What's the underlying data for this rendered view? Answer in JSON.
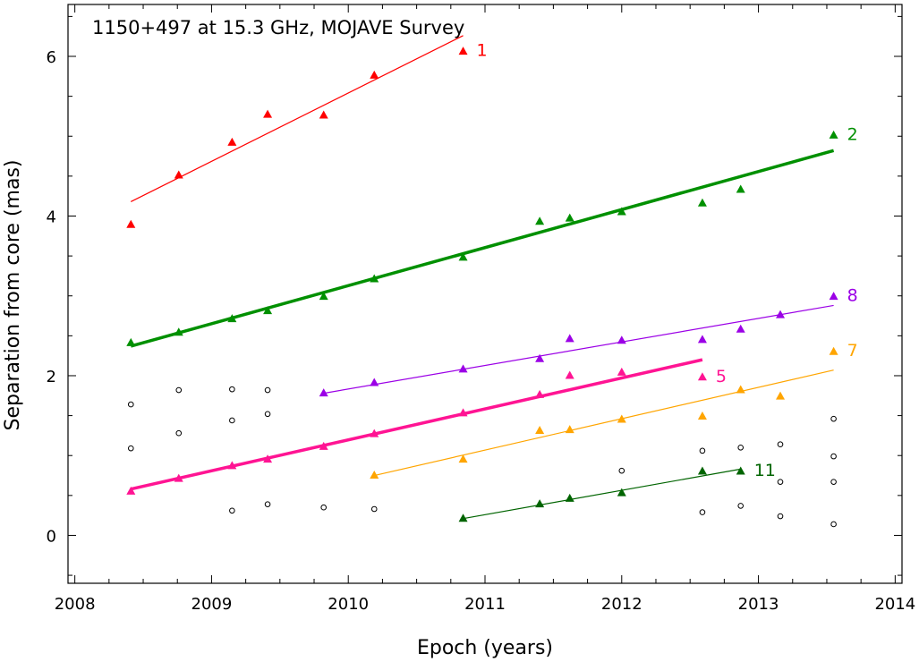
{
  "chart_data": {
    "type": "scatter",
    "title": "1150+497 at 15.3 GHz, MOJAVE Survey",
    "xlabel": "Epoch (years)",
    "ylabel": "Separation from core (mas)",
    "xlim": [
      2007.95,
      2014.05
    ],
    "ylim": [
      -0.6,
      6.65
    ],
    "xticks": [
      2008,
      2009,
      2010,
      2011,
      2012,
      2013,
      2014
    ],
    "yticks": [
      0,
      2,
      4,
      6
    ],
    "xtick_labels": [
      "2008",
      "2009",
      "2010",
      "2011",
      "2012",
      "2013",
      "2014"
    ],
    "ytick_labels": [
      "0",
      "2",
      "4",
      "6"
    ],
    "series": [
      {
        "name": "1",
        "color": "#ff0000",
        "bold": false,
        "points": [
          [
            2008.41,
            3.89
          ],
          [
            2008.76,
            4.51
          ],
          [
            2009.15,
            4.92
          ],
          [
            2009.41,
            5.27
          ],
          [
            2009.82,
            5.26
          ],
          [
            2010.19,
            5.76
          ],
          [
            2010.84,
            6.06
          ]
        ],
        "fit": [
          [
            2008.41,
            4.18
          ],
          [
            2010.84,
            6.26
          ]
        ]
      },
      {
        "name": "2",
        "color": "#009000",
        "bold": true,
        "points": [
          [
            2008.41,
            2.41
          ],
          [
            2008.76,
            2.54
          ],
          [
            2009.15,
            2.71
          ],
          [
            2009.41,
            2.81
          ],
          [
            2009.82,
            2.99
          ],
          [
            2010.19,
            3.21
          ],
          [
            2010.84,
            3.48
          ],
          [
            2011.4,
            3.93
          ],
          [
            2011.62,
            3.97
          ],
          [
            2012.0,
            4.05
          ],
          [
            2012.59,
            4.16
          ],
          [
            2012.87,
            4.33
          ],
          [
            2013.55,
            5.01
          ]
        ],
        "fit": [
          [
            2008.41,
            2.37
          ],
          [
            2013.55,
            4.82
          ]
        ]
      },
      {
        "name": "8",
        "color": "#9b00e6",
        "bold": false,
        "points": [
          [
            2009.82,
            1.78
          ],
          [
            2010.19,
            1.91
          ],
          [
            2010.84,
            2.08
          ],
          [
            2011.4,
            2.21
          ],
          [
            2011.62,
            2.46
          ],
          [
            2012.0,
            2.44
          ],
          [
            2012.59,
            2.45
          ],
          [
            2012.87,
            2.58
          ],
          [
            2013.16,
            2.76
          ],
          [
            2013.55,
            2.99
          ]
        ],
        "fit": [
          [
            2009.82,
            1.78
          ],
          [
            2013.55,
            2.88
          ]
        ]
      },
      {
        "name": "5",
        "color": "#ff1493",
        "bold": true,
        "points": [
          [
            2008.41,
            0.55
          ],
          [
            2008.76,
            0.71
          ],
          [
            2009.15,
            0.87
          ],
          [
            2009.41,
            0.95
          ],
          [
            2009.82,
            1.11
          ],
          [
            2010.19,
            1.27
          ],
          [
            2010.84,
            1.53
          ],
          [
            2011.4,
            1.76
          ],
          [
            2011.62,
            2.0
          ],
          [
            2012.0,
            2.04
          ],
          [
            2012.59,
            1.98
          ]
        ],
        "fit": [
          [
            2008.41,
            0.58
          ],
          [
            2012.59,
            2.2
          ]
        ]
      },
      {
        "name": "7",
        "color": "#ffa500",
        "bold": false,
        "points": [
          [
            2010.19,
            0.75
          ],
          [
            2010.84,
            0.95
          ],
          [
            2011.4,
            1.31
          ],
          [
            2011.62,
            1.32
          ],
          [
            2012.0,
            1.45
          ],
          [
            2012.59,
            1.49
          ],
          [
            2012.87,
            1.82
          ],
          [
            2013.16,
            1.74
          ],
          [
            2013.55,
            2.3
          ]
        ],
        "fit": [
          [
            2010.19,
            0.75
          ],
          [
            2013.55,
            2.07
          ]
        ]
      },
      {
        "name": "11",
        "color": "#006400",
        "bold": false,
        "points": [
          [
            2010.84,
            0.21
          ],
          [
            2011.4,
            0.39
          ],
          [
            2011.62,
            0.46
          ],
          [
            2012.0,
            0.53
          ],
          [
            2012.59,
            0.8
          ],
          [
            2012.87,
            0.8
          ]
        ],
        "fit": [
          [
            2010.84,
            0.21
          ],
          [
            2012.87,
            0.83
          ]
        ]
      }
    ],
    "unassigned": {
      "marker": "open-circle",
      "points": [
        [
          2008.41,
          1.64
        ],
        [
          2008.41,
          1.09
        ],
        [
          2008.76,
          1.82
        ],
        [
          2008.76,
          1.28
        ],
        [
          2009.15,
          1.83
        ],
        [
          2009.15,
          1.44
        ],
        [
          2009.15,
          0.31
        ],
        [
          2009.41,
          1.82
        ],
        [
          2009.41,
          1.52
        ],
        [
          2009.41,
          0.39
        ],
        [
          2009.82,
          0.35
        ],
        [
          2010.19,
          0.33
        ],
        [
          2012.0,
          0.81
        ],
        [
          2012.59,
          1.06
        ],
        [
          2012.59,
          0.29
        ],
        [
          2012.87,
          1.1
        ],
        [
          2012.87,
          0.37
        ],
        [
          2013.16,
          1.14
        ],
        [
          2013.16,
          0.67
        ],
        [
          2013.16,
          0.24
        ],
        [
          2013.55,
          1.46
        ],
        [
          2013.55,
          0.99
        ],
        [
          2013.55,
          0.67
        ],
        [
          2013.55,
          0.14
        ]
      ]
    }
  }
}
